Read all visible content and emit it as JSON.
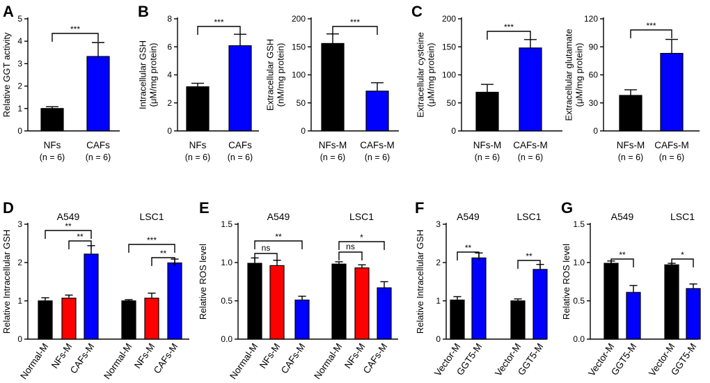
{
  "colors": {
    "black": "#000000",
    "blue": "#0000ff",
    "red": "#ff0000"
  },
  "chart_data": [
    {
      "id": "A",
      "letter": "A",
      "type": "bar",
      "ylabel": [
        "Relative GGT activity"
      ],
      "ylim": [
        0,
        5
      ],
      "yticks": [
        "0",
        "1",
        "2",
        "3",
        "4",
        "5"
      ],
      "categories": [
        {
          "label": "NFs",
          "sub": "(n = 6)"
        },
        {
          "label": "CAFs",
          "sub": "(n = 6)"
        }
      ],
      "values": [
        1.0,
        3.32
      ],
      "errors": [
        0.08,
        0.62
      ],
      "colors": [
        "#000000",
        "#0000ff"
      ],
      "annotations": [
        {
          "from": 0,
          "to": 1,
          "text": "***"
        }
      ]
    },
    {
      "id": "B1",
      "letter": "B",
      "type": "bar",
      "ylabel": [
        "Intracellular GSH",
        "(μM/mg protein)"
      ],
      "ylim": [
        0,
        8
      ],
      "yticks": [
        "0",
        "2",
        "4",
        "6",
        "8"
      ],
      "categories": [
        {
          "label": "NFs",
          "sub": "(n = 6)"
        },
        {
          "label": "CAFs",
          "sub": "(n = 6)"
        }
      ],
      "values": [
        3.15,
        6.08
      ],
      "errors": [
        0.25,
        0.82
      ],
      "colors": [
        "#000000",
        "#0000ff"
      ],
      "annotations": [
        {
          "from": 0,
          "to": 1,
          "text": "***"
        }
      ]
    },
    {
      "id": "B2",
      "letter": "",
      "type": "bar",
      "ylabel": [
        "Extracellular GSH",
        "(nM/mg protein)"
      ],
      "ylim": [
        0,
        200
      ],
      "yticks": [
        "0",
        "50",
        "100",
        "150",
        "200"
      ],
      "categories": [
        {
          "label": "NFs-M",
          "sub": "(n = 6)"
        },
        {
          "label": "CAFs-M",
          "sub": "(n = 6)"
        }
      ],
      "values": [
        156,
        71
      ],
      "errors": [
        17,
        15
      ],
      "colors": [
        "#000000",
        "#0000ff"
      ],
      "annotations": [
        {
          "from": 0,
          "to": 1,
          "text": "***"
        }
      ]
    },
    {
      "id": "C1",
      "letter": "C",
      "type": "bar",
      "ylabel": [
        "Extracellular cysteine",
        "(μM/mg protein)"
      ],
      "ylim": [
        0,
        200
      ],
      "yticks": [
        "0",
        "50",
        "100",
        "150",
        "200"
      ],
      "categories": [
        {
          "label": "NFs-M",
          "sub": "(n = 6)"
        },
        {
          "label": "CAFs-M",
          "sub": "(n = 6)"
        }
      ],
      "values": [
        69,
        148
      ],
      "errors": [
        14,
        15
      ],
      "colors": [
        "#000000",
        "#0000ff"
      ],
      "annotations": [
        {
          "from": 0,
          "to": 1,
          "text": "***"
        }
      ]
    },
    {
      "id": "C2",
      "letter": "",
      "type": "bar",
      "ylabel": [
        "Extracellular glutamate",
        "(μM/mg protein)"
      ],
      "ylim": [
        0,
        120
      ],
      "yticks": [
        "0",
        "30",
        "60",
        "90",
        "120"
      ],
      "categories": [
        {
          "label": "NFs-M",
          "sub": "(n = 6)"
        },
        {
          "label": "CAFs-M",
          "sub": "(n = 6)"
        }
      ],
      "values": [
        38,
        83
      ],
      "errors": [
        6,
        15
      ],
      "colors": [
        "#000000",
        "#0000ff"
      ],
      "annotations": [
        {
          "from": 0,
          "to": 1,
          "text": "***"
        }
      ]
    },
    {
      "id": "D",
      "letter": "D",
      "type": "bar",
      "ylabel": [
        "Relative Intracellular GSH"
      ],
      "ylim": [
        0,
        3
      ],
      "yticks": [
        "0",
        "1",
        "2",
        "3"
      ],
      "groups": [
        "A549",
        "LSC1"
      ],
      "categories": [
        {
          "label": "Normal-M",
          "group": 0
        },
        {
          "label": "NFs-M",
          "group": 0
        },
        {
          "label": "CAFs-M",
          "group": 0
        },
        {
          "label": "Normal-M",
          "group": 1
        },
        {
          "label": "NFs-M",
          "group": 1
        },
        {
          "label": "CAFs-M",
          "group": 1
        }
      ],
      "values": [
        1.0,
        1.07,
        2.22,
        1.0,
        1.07,
        1.99
      ],
      "errors": [
        0.08,
        0.08,
        0.22,
        0.03,
        0.13,
        0.1
      ],
      "colors": [
        "#000000",
        "#ff0000",
        "#0000ff",
        "#000000",
        "#ff0000",
        "#0000ff"
      ],
      "annotations": [
        {
          "from": 0,
          "to": 2,
          "text": "**"
        },
        {
          "from": 1,
          "to": 2,
          "text": "**"
        },
        {
          "from": 3,
          "to": 5,
          "text": "***"
        },
        {
          "from": 4,
          "to": 5,
          "text": "**"
        }
      ]
    },
    {
      "id": "E",
      "letter": "E",
      "type": "bar",
      "ylabel": [
        "Relative ROS level"
      ],
      "ylim": [
        0,
        1.5
      ],
      "yticks": [
        "0.0",
        "0.5",
        "1.0",
        "1.5"
      ],
      "groups": [
        "A549",
        "LSC1"
      ],
      "categories": [
        {
          "label": "Normal-M",
          "group": 0
        },
        {
          "label": "NFs-M",
          "group": 0
        },
        {
          "label": "CAFs-M",
          "group": 0
        },
        {
          "label": "Normal-M",
          "group": 1
        },
        {
          "label": "NFs-M",
          "group": 1
        },
        {
          "label": "CAFs-M",
          "group": 1
        }
      ],
      "values": [
        0.99,
        0.96,
        0.51,
        0.98,
        0.93,
        0.67
      ],
      "errors": [
        0.07,
        0.07,
        0.05,
        0.03,
        0.04,
        0.08
      ],
      "colors": [
        "#000000",
        "#ff0000",
        "#0000ff",
        "#000000",
        "#ff0000",
        "#0000ff"
      ],
      "annotations": [
        {
          "from": 0,
          "to": 1,
          "text": "ns"
        },
        {
          "from": 0,
          "to": 2,
          "text": "**"
        },
        {
          "from": 3,
          "to": 4,
          "text": "ns"
        },
        {
          "from": 3,
          "to": 5,
          "text": "*"
        }
      ]
    },
    {
      "id": "F",
      "letter": "F",
      "type": "bar",
      "ylabel": [
        "Relative Intracellular GSH"
      ],
      "ylim": [
        0,
        3
      ],
      "yticks": [
        "0",
        "1",
        "2",
        "3"
      ],
      "groups": [
        "A549",
        "LSC1"
      ],
      "categories": [
        {
          "label": "Vector-M",
          "group": 0
        },
        {
          "label": "GGT5-M",
          "group": 0
        },
        {
          "label": "Vector-M",
          "group": 1
        },
        {
          "label": "GGT5-M",
          "group": 1
        }
      ],
      "values": [
        1.02,
        2.12,
        1.0,
        1.82
      ],
      "errors": [
        0.09,
        0.13,
        0.05,
        0.13
      ],
      "colors": [
        "#000000",
        "#0000ff",
        "#000000",
        "#0000ff"
      ],
      "annotations": [
        {
          "from": 0,
          "to": 1,
          "text": "**"
        },
        {
          "from": 2,
          "to": 3,
          "text": "**"
        }
      ]
    },
    {
      "id": "G",
      "letter": "G",
      "type": "bar",
      "ylabel": [
        "Relative ROS level"
      ],
      "ylim": [
        0,
        1.5
      ],
      "yticks": [
        "0.0",
        "0.5",
        "1.0",
        "1.5"
      ],
      "groups": [
        "A549",
        "LSC1"
      ],
      "categories": [
        {
          "label": "Vector-M",
          "group": 0
        },
        {
          "label": "GGT5-M",
          "group": 0
        },
        {
          "label": "Vector-M",
          "group": 1
        },
        {
          "label": "GGT5-M",
          "group": 1
        }
      ],
      "values": [
        0.99,
        0.61,
        0.97,
        0.66
      ],
      "errors": [
        0.03,
        0.09,
        0.02,
        0.06
      ],
      "colors": [
        "#000000",
        "#0000ff",
        "#000000",
        "#0000ff"
      ],
      "annotations": [
        {
          "from": 0,
          "to": 1,
          "text": "**"
        },
        {
          "from": 2,
          "to": 3,
          "text": "*"
        }
      ]
    }
  ]
}
